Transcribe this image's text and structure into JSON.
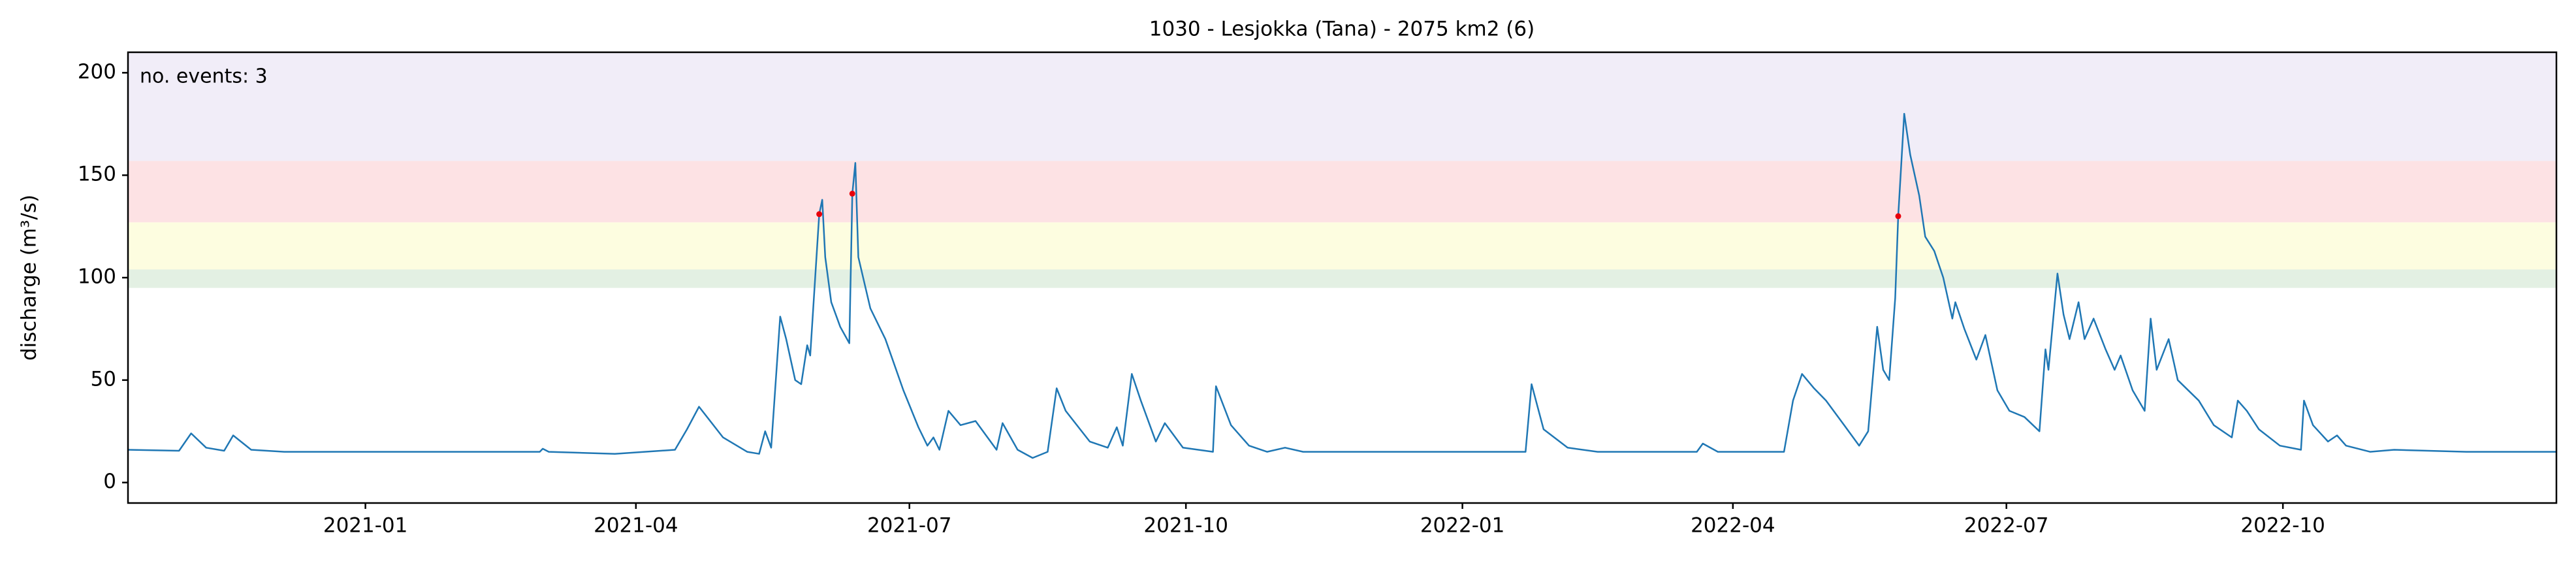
{
  "chart_data": {
    "type": "line",
    "title": "1030 - Lesjokka (Tana) - 2075 km2 (6)",
    "ylabel": "discharge (m³/s)",
    "annotation": {
      "text": "no. events: 3",
      "color": "#e8000b"
    },
    "xlim": [
      "2020-10-14",
      "2022-12-31"
    ],
    "xticks": [
      {
        "value": "2021-01-01",
        "label": "2021-01"
      },
      {
        "value": "2021-04-01",
        "label": "2021-04"
      },
      {
        "value": "2021-07-01",
        "label": "2021-07"
      },
      {
        "value": "2021-10-01",
        "label": "2021-10"
      },
      {
        "value": "2022-01-01",
        "label": "2022-01"
      },
      {
        "value": "2022-04-01",
        "label": "2022-04"
      },
      {
        "value": "2022-07-01",
        "label": "2022-07"
      },
      {
        "value": "2022-10-01",
        "label": "2022-10"
      }
    ],
    "ylim": [
      -10,
      210
    ],
    "yticks": [
      0,
      50,
      100,
      150,
      200
    ],
    "grid": false,
    "bands": [
      {
        "from": 95,
        "to": 104,
        "color": "#e3f0e3"
      },
      {
        "from": 104,
        "to": 127,
        "color": "#fdfde0"
      },
      {
        "from": 127,
        "to": 157,
        "color": "#fde2e4"
      },
      {
        "from": 157,
        "to": 210,
        "color": "#f1edf8"
      }
    ],
    "series": [
      {
        "mode": "line",
        "color": "#1f77b4",
        "x": [
          "2020-10-14",
          "2020-10-31",
          "2020-11-04",
          "2020-11-09",
          "2020-11-15",
          "2020-11-18",
          "2020-11-24",
          "2020-12-05",
          "2021-01-15",
          "2021-02-28",
          "2021-03-01",
          "2021-03-03",
          "2021-03-25",
          "2021-04-14",
          "2021-04-18",
          "2021-04-22",
          "2021-04-30",
          "2021-05-08",
          "2021-05-12",
          "2021-05-14",
          "2021-05-16",
          "2021-05-19",
          "2021-05-21",
          "2021-05-24",
          "2021-05-26",
          "2021-05-28",
          "2021-05-29",
          "2021-06-01",
          "2021-06-02",
          "2021-06-03",
          "2021-06-05",
          "2021-06-08",
          "2021-06-11",
          "2021-06-12",
          "2021-06-13",
          "2021-06-14",
          "2021-06-18",
          "2021-06-23",
          "2021-06-29",
          "2021-07-04",
          "2021-07-07",
          "2021-07-09",
          "2021-07-11",
          "2021-07-14",
          "2021-07-18",
          "2021-07-23",
          "2021-07-27",
          "2021-07-30",
          "2021-08-01",
          "2021-08-06",
          "2021-08-11",
          "2021-08-16",
          "2021-08-19",
          "2021-08-22",
          "2021-08-30",
          "2021-09-05",
          "2021-09-08",
          "2021-09-10",
          "2021-09-13",
          "2021-09-16",
          "2021-09-21",
          "2021-09-24",
          "2021-09-30",
          "2021-10-10",
          "2021-10-11",
          "2021-10-16",
          "2021-10-22",
          "2021-10-28",
          "2021-11-03",
          "2021-11-09",
          "2022-01-22",
          "2022-01-24",
          "2022-01-28",
          "2022-02-05",
          "2022-02-15",
          "2022-03-20",
          "2022-03-22",
          "2022-03-27",
          "2022-04-18",
          "2022-04-21",
          "2022-04-24",
          "2022-04-28",
          "2022-05-02",
          "2022-05-08",
          "2022-05-13",
          "2022-05-16",
          "2022-05-17",
          "2022-05-19",
          "2022-05-21",
          "2022-05-23",
          "2022-05-25",
          "2022-05-26",
          "2022-05-28",
          "2022-05-30",
          "2022-06-02",
          "2022-06-04",
          "2022-06-07",
          "2022-06-10",
          "2022-06-13",
          "2022-06-14",
          "2022-06-17",
          "2022-06-21",
          "2022-06-24",
          "2022-06-28",
          "2022-07-02",
          "2022-07-07",
          "2022-07-12",
          "2022-07-14",
          "2022-07-15",
          "2022-07-18",
          "2022-07-20",
          "2022-07-22",
          "2022-07-25",
          "2022-07-27",
          "2022-07-30",
          "2022-08-03",
          "2022-08-06",
          "2022-08-08",
          "2022-08-12",
          "2022-08-16",
          "2022-08-18",
          "2022-08-20",
          "2022-08-24",
          "2022-08-27",
          "2022-09-03",
          "2022-09-08",
          "2022-09-14",
          "2022-09-16",
          "2022-09-19",
          "2022-09-23",
          "2022-09-30",
          "2022-10-07",
          "2022-10-08",
          "2022-10-11",
          "2022-10-16",
          "2022-10-19",
          "2022-10-22",
          "2022-10-30",
          "2022-11-07",
          "2022-12-01",
          "2022-12-31"
        ],
        "values": [
          16,
          15.5,
          24,
          17,
          15.5,
          23,
          16,
          15,
          15,
          15,
          16.5,
          15,
          14,
          16,
          26,
          37,
          22,
          15,
          14,
          25,
          17,
          81,
          70,
          50,
          48,
          67,
          62,
          131,
          138,
          110,
          88,
          76,
          68,
          141,
          156,
          110,
          85,
          70,
          45,
          27,
          18,
          22,
          16,
          35,
          28,
          30,
          22,
          16,
          29,
          16,
          12,
          15,
          46,
          35,
          20,
          17,
          27,
          18,
          53,
          40,
          20,
          29,
          17,
          15,
          47,
          28,
          18,
          15,
          17,
          15,
          15,
          48,
          26,
          17,
          15,
          15,
          19,
          15,
          15,
          40,
          53,
          46,
          40,
          28,
          18,
          25,
          42,
          76,
          55,
          50,
          90,
          130,
          180,
          160,
          140,
          120,
          113,
          100,
          80,
          88,
          75,
          60,
          72,
          45,
          35,
          32,
          25,
          65,
          55,
          102,
          82,
          70,
          88,
          70,
          80,
          65,
          55,
          62,
          45,
          35,
          80,
          55,
          70,
          50,
          40,
          28,
          22,
          40,
          35,
          26,
          18,
          16,
          40,
          28,
          20,
          23,
          18,
          15,
          16,
          15,
          15
        ]
      },
      {
        "mode": "markers",
        "color": "#e8000b",
        "x": [
          "2021-06-01",
          "2021-06-12",
          "2022-05-26"
        ],
        "values": [
          131,
          141,
          130
        ]
      }
    ]
  }
}
